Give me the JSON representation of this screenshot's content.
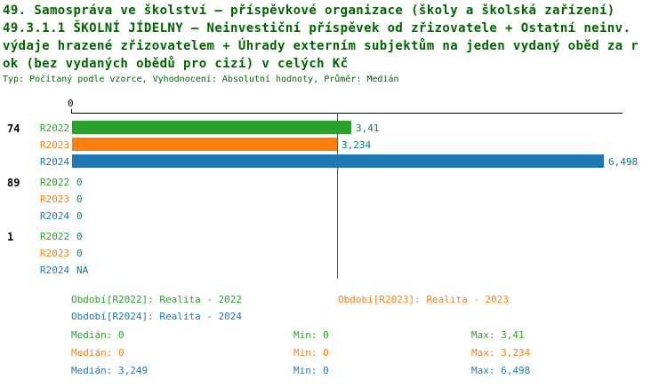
{
  "title": {
    "line1": "49. Samospráva ve školství – příspěvkové organizace (školy a školská zařízení)",
    "line2": "49.3.1.1 ŠKOLNÍ JÍDELNY – Neinvestiční příspěvek od zřizovatele + Ostatní neinv.",
    "line3": "výdaje hrazené zřizovatelem + Úhrady externím subjektům na jeden vydaný oběd za r",
    "line4": "ok (bez vydaných obědů pro cizí) v celých Kč",
    "meta": "Typ: Počítaný podle vzorce, Vyhodnocení: Absolutní hodnoty, Průměr: Medián",
    "title_color": "#006400"
  },
  "chart_data": {
    "type": "bar",
    "orientation": "horizontal",
    "x_axis": {
      "zero_label": "0",
      "position": "top",
      "min": 0
    },
    "value_label_color": "#008080",
    "median_line": {
      "value": 3.249,
      "color": "#008080"
    },
    "series_colors": {
      "R2022": "#2ca02c",
      "R2023": "#ff7f0e",
      "R2024": "#1f77b4"
    },
    "groups": [
      {
        "label": "74",
        "rows": [
          {
            "series": "R2022",
            "value": 3.41,
            "value_label": "3,41"
          },
          {
            "series": "R2023",
            "value": 3.234,
            "value_label": "3,234"
          },
          {
            "series": "R2024",
            "value": 6.498,
            "value_label": "6,498"
          }
        ]
      },
      {
        "label": "89",
        "rows": [
          {
            "series": "R2022",
            "value": 0,
            "value_label": "0"
          },
          {
            "series": "R2023",
            "value": 0,
            "value_label": "0"
          },
          {
            "series": "R2024",
            "value": 0,
            "value_label": "0"
          }
        ]
      },
      {
        "label": "1",
        "rows": [
          {
            "series": "R2022",
            "value": 0,
            "value_label": "0"
          },
          {
            "series": "R2023",
            "value": 0,
            "value_label": "0"
          },
          {
            "series": "R2024",
            "value": null,
            "value_label": "NA"
          }
        ]
      }
    ]
  },
  "legend": {
    "items": [
      {
        "label": "Období[R2022]: Realita - 2022",
        "color": "#2ca02c"
      },
      {
        "label": "Období[R2023]: Realita - 2023",
        "color": "#ff7f0e"
      },
      {
        "label": "Období[R2024]: Realita - 2024",
        "color": "#1f77b4"
      }
    ]
  },
  "stats": {
    "rows": [
      {
        "median": "Medián: 0",
        "min": "Min: 0",
        "max": "Max: 3,41",
        "color": "#2ca02c"
      },
      {
        "median": "Medián: 0",
        "min": "Min: 0",
        "max": "Max: 3,234",
        "color": "#ff7f0e"
      },
      {
        "median": "Medián: 3,249",
        "min": "Min: 0",
        "max": "Max: 6,498",
        "color": "#1f77b4"
      }
    ]
  }
}
